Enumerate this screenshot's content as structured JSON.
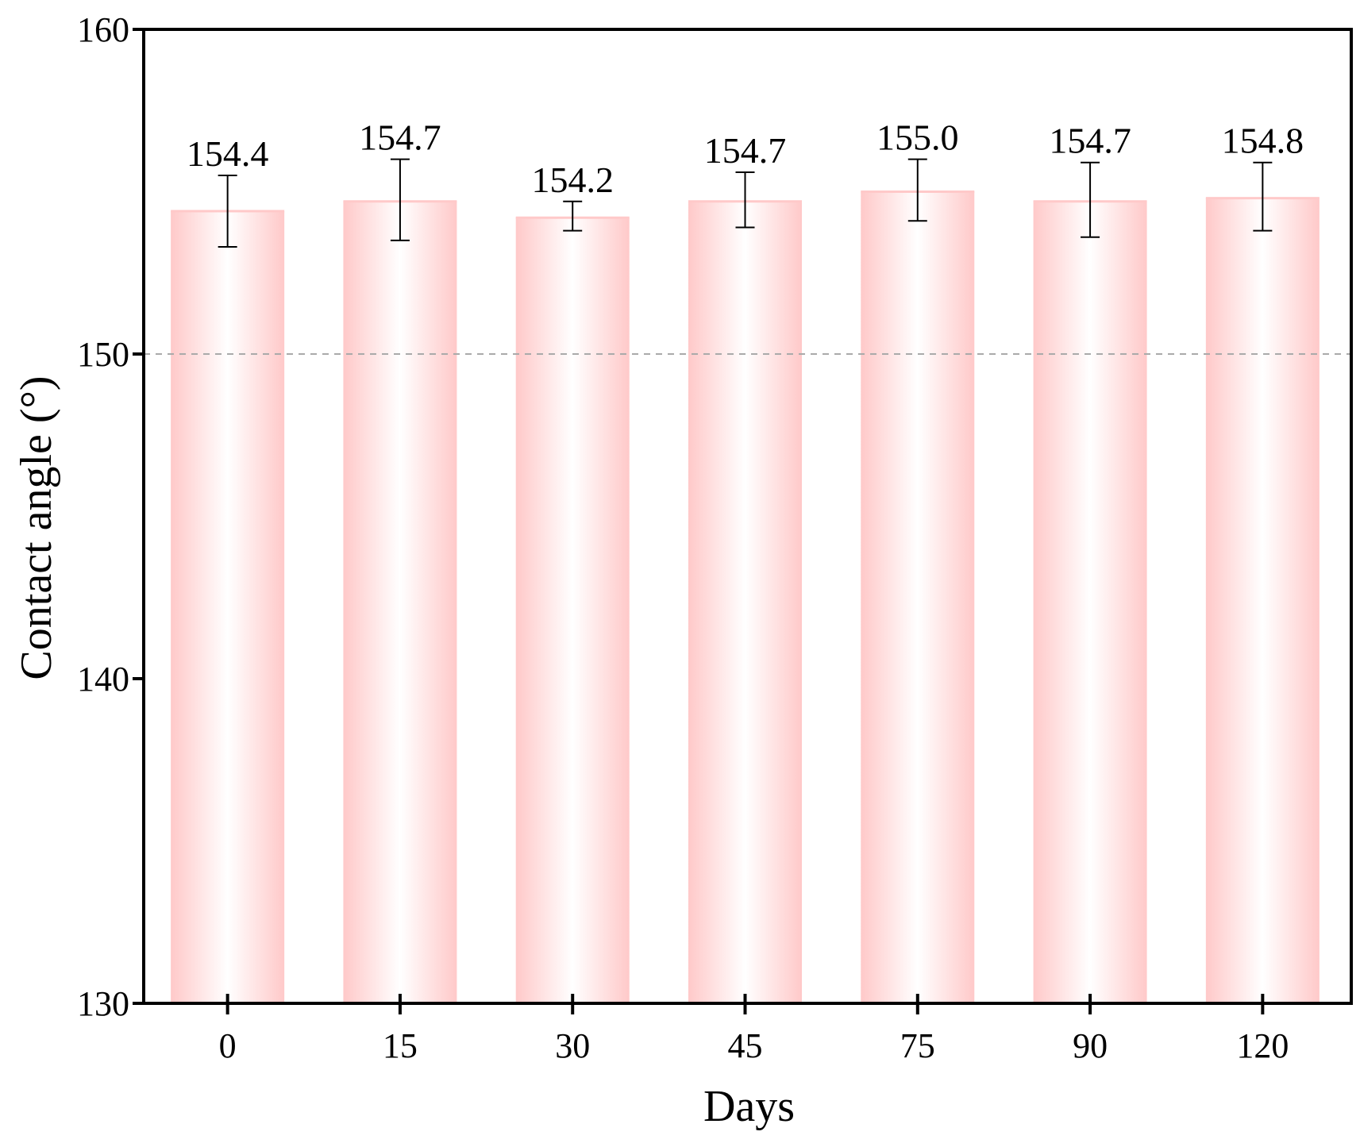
{
  "chart_data": {
    "type": "bar",
    "categories": [
      "0",
      "15",
      "30",
      "45",
      "75",
      "90",
      "120"
    ],
    "values": [
      154.4,
      154.7,
      154.2,
      154.7,
      155.0,
      154.7,
      154.8
    ],
    "value_labels": [
      "154.4",
      "154.7",
      "154.2",
      "154.7",
      "155.0",
      "154.7",
      "154.8"
    ],
    "error_low": [
      153.3,
      153.5,
      153.8,
      153.9,
      154.1,
      153.6,
      153.8
    ],
    "error_high": [
      155.5,
      156.0,
      154.7,
      155.6,
      156.0,
      155.9,
      155.9
    ],
    "xlabel": "Days",
    "ylabel": "Contact angle (°)",
    "ylim": [
      130,
      160
    ],
    "yticks": [
      130,
      140,
      150,
      160
    ],
    "reference_line": 150,
    "grid": false,
    "colors": {
      "bar_edge": "#ffc9c9",
      "bar_center": "#ffffff",
      "axis": "#000000",
      "reference_line": "#aaaaaa"
    }
  }
}
